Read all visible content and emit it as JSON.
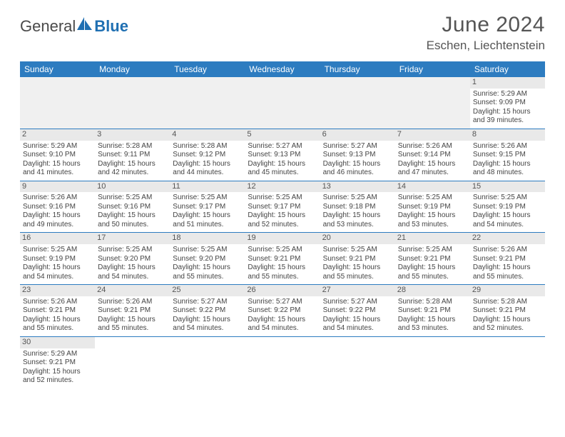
{
  "logo": {
    "text1": "General",
    "text2": "Blue"
  },
  "title": "June 2024",
  "location": "Eschen, Liechtenstein",
  "colors": {
    "header_bg": "#2d7cc0",
    "header_text": "#ffffff",
    "daynum_bg": "#e9e9e9",
    "blank_bg": "#f0f0f0",
    "rule": "#2d7cc0",
    "logo_blue": "#1f6fb2"
  },
  "days_of_week": [
    "Sunday",
    "Monday",
    "Tuesday",
    "Wednesday",
    "Thursday",
    "Friday",
    "Saturday"
  ],
  "weeks": [
    [
      null,
      null,
      null,
      null,
      null,
      null,
      {
        "n": "1",
        "sr": "5:29 AM",
        "ss": "9:09 PM",
        "dl1": "15 hours",
        "dl2": "and 39 minutes."
      }
    ],
    [
      {
        "n": "2",
        "sr": "5:29 AM",
        "ss": "9:10 PM",
        "dl1": "15 hours",
        "dl2": "and 41 minutes."
      },
      {
        "n": "3",
        "sr": "5:28 AM",
        "ss": "9:11 PM",
        "dl1": "15 hours",
        "dl2": "and 42 minutes."
      },
      {
        "n": "4",
        "sr": "5:28 AM",
        "ss": "9:12 PM",
        "dl1": "15 hours",
        "dl2": "and 44 minutes."
      },
      {
        "n": "5",
        "sr": "5:27 AM",
        "ss": "9:13 PM",
        "dl1": "15 hours",
        "dl2": "and 45 minutes."
      },
      {
        "n": "6",
        "sr": "5:27 AM",
        "ss": "9:13 PM",
        "dl1": "15 hours",
        "dl2": "and 46 minutes."
      },
      {
        "n": "7",
        "sr": "5:26 AM",
        "ss": "9:14 PM",
        "dl1": "15 hours",
        "dl2": "and 47 minutes."
      },
      {
        "n": "8",
        "sr": "5:26 AM",
        "ss": "9:15 PM",
        "dl1": "15 hours",
        "dl2": "and 48 minutes."
      }
    ],
    [
      {
        "n": "9",
        "sr": "5:26 AM",
        "ss": "9:16 PM",
        "dl1": "15 hours",
        "dl2": "and 49 minutes."
      },
      {
        "n": "10",
        "sr": "5:25 AM",
        "ss": "9:16 PM",
        "dl1": "15 hours",
        "dl2": "and 50 minutes."
      },
      {
        "n": "11",
        "sr": "5:25 AM",
        "ss": "9:17 PM",
        "dl1": "15 hours",
        "dl2": "and 51 minutes."
      },
      {
        "n": "12",
        "sr": "5:25 AM",
        "ss": "9:17 PM",
        "dl1": "15 hours",
        "dl2": "and 52 minutes."
      },
      {
        "n": "13",
        "sr": "5:25 AM",
        "ss": "9:18 PM",
        "dl1": "15 hours",
        "dl2": "and 53 minutes."
      },
      {
        "n": "14",
        "sr": "5:25 AM",
        "ss": "9:19 PM",
        "dl1": "15 hours",
        "dl2": "and 53 minutes."
      },
      {
        "n": "15",
        "sr": "5:25 AM",
        "ss": "9:19 PM",
        "dl1": "15 hours",
        "dl2": "and 54 minutes."
      }
    ],
    [
      {
        "n": "16",
        "sr": "5:25 AM",
        "ss": "9:19 PM",
        "dl1": "15 hours",
        "dl2": "and 54 minutes."
      },
      {
        "n": "17",
        "sr": "5:25 AM",
        "ss": "9:20 PM",
        "dl1": "15 hours",
        "dl2": "and 54 minutes."
      },
      {
        "n": "18",
        "sr": "5:25 AM",
        "ss": "9:20 PM",
        "dl1": "15 hours",
        "dl2": "and 55 minutes."
      },
      {
        "n": "19",
        "sr": "5:25 AM",
        "ss": "9:21 PM",
        "dl1": "15 hours",
        "dl2": "and 55 minutes."
      },
      {
        "n": "20",
        "sr": "5:25 AM",
        "ss": "9:21 PM",
        "dl1": "15 hours",
        "dl2": "and 55 minutes."
      },
      {
        "n": "21",
        "sr": "5:25 AM",
        "ss": "9:21 PM",
        "dl1": "15 hours",
        "dl2": "and 55 minutes."
      },
      {
        "n": "22",
        "sr": "5:26 AM",
        "ss": "9:21 PM",
        "dl1": "15 hours",
        "dl2": "and 55 minutes."
      }
    ],
    [
      {
        "n": "23",
        "sr": "5:26 AM",
        "ss": "9:21 PM",
        "dl1": "15 hours",
        "dl2": "and 55 minutes."
      },
      {
        "n": "24",
        "sr": "5:26 AM",
        "ss": "9:21 PM",
        "dl1": "15 hours",
        "dl2": "and 55 minutes."
      },
      {
        "n": "25",
        "sr": "5:27 AM",
        "ss": "9:22 PM",
        "dl1": "15 hours",
        "dl2": "and 54 minutes."
      },
      {
        "n": "26",
        "sr": "5:27 AM",
        "ss": "9:22 PM",
        "dl1": "15 hours",
        "dl2": "and 54 minutes."
      },
      {
        "n": "27",
        "sr": "5:27 AM",
        "ss": "9:22 PM",
        "dl1": "15 hours",
        "dl2": "and 54 minutes."
      },
      {
        "n": "28",
        "sr": "5:28 AM",
        "ss": "9:21 PM",
        "dl1": "15 hours",
        "dl2": "and 53 minutes."
      },
      {
        "n": "29",
        "sr": "5:28 AM",
        "ss": "9:21 PM",
        "dl1": "15 hours",
        "dl2": "and 52 minutes."
      }
    ],
    [
      {
        "n": "30",
        "sr": "5:29 AM",
        "ss": "9:21 PM",
        "dl1": "15 hours",
        "dl2": "and 52 minutes."
      },
      null,
      null,
      null,
      null,
      null,
      null
    ]
  ],
  "labels": {
    "sunrise": "Sunrise:",
    "sunset": "Sunset:",
    "daylight": "Daylight:"
  }
}
